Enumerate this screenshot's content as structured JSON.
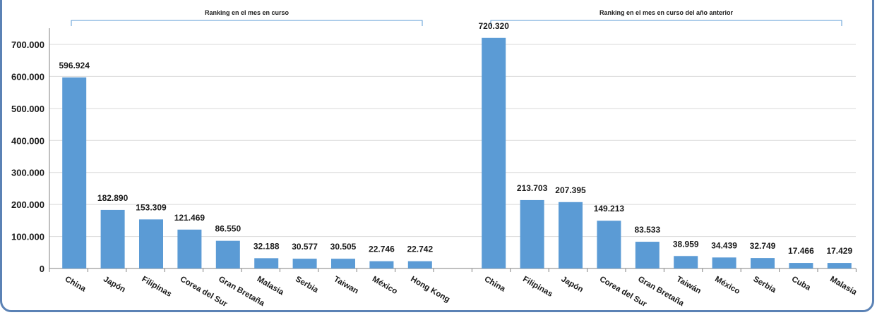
{
  "chart_data": {
    "type": "bar",
    "title": "",
    "xlabel": "",
    "ylabel": "",
    "ylim": [
      0,
      700000
    ],
    "yticks": [
      0,
      100000,
      200000,
      300000,
      400000,
      500000,
      600000,
      700000
    ],
    "ytick_labels": [
      "0",
      "100.000",
      "200.000",
      "300.000",
      "400.000",
      "500.000",
      "600.000",
      "700.000"
    ],
    "grid": true,
    "bar_color": "#5b9bd5",
    "bracket_color": "#5b9bd5",
    "groups": [
      {
        "label": "Ranking en el mes en curso",
        "categories": [
          "China",
          "Japón",
          "Filipinas",
          "Corea del Sur",
          "Gran Bretaña",
          "Malasia",
          "Serbia",
          "Taiwan",
          "México",
          "Hong Kong"
        ],
        "values": [
          596924,
          182890,
          153309,
          121469,
          86550,
          32188,
          30577,
          30505,
          22746,
          22742
        ],
        "value_labels": [
          "596.924",
          "182.890",
          "153.309",
          "121.469",
          "86.550",
          "32.188",
          "30.577",
          "30.505",
          "22.746",
          "22.742"
        ]
      },
      {
        "label": "Ranking en el mes en curso del año anterior",
        "categories": [
          "China",
          "Filipinas",
          "Japón",
          "Corea del Sur",
          "Gran Bretaña",
          "Taiwán",
          "México",
          "Serbia",
          "Cuba",
          "Malasia"
        ],
        "values": [
          720320,
          213703,
          207395,
          149213,
          83533,
          38959,
          34439,
          32749,
          17466,
          17429
        ],
        "value_labels": [
          "720.320",
          "213.703",
          "207.395",
          "149.213",
          "83.533",
          "38.959",
          "34.439",
          "32.749",
          "17.466",
          "17.429"
        ]
      }
    ]
  }
}
